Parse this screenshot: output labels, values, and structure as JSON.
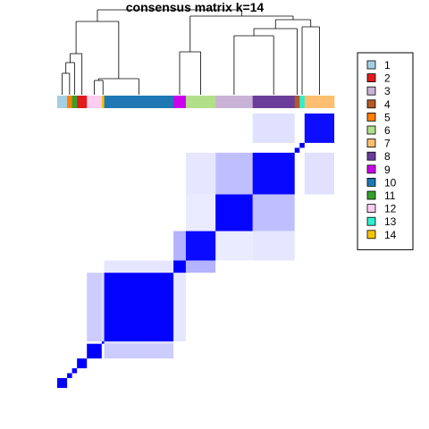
{
  "chart_data": {
    "type": "heatmap",
    "title": "consensus matrix k=14",
    "value_range": [
      0,
      1
    ],
    "color_low": "#ffffff",
    "color_high": "#0000ff",
    "legend_placement": "right",
    "legend": [
      {
        "label": "1",
        "color": "#a6cee3"
      },
      {
        "label": "2",
        "color": "#e31a1c"
      },
      {
        "label": "3",
        "color": "#cab2d6"
      },
      {
        "label": "4",
        "color": "#b15928"
      },
      {
        "label": "5",
        "color": "#ff7f00"
      },
      {
        "label": "6",
        "color": "#b2df8a"
      },
      {
        "label": "7",
        "color": "#fdbf6f"
      },
      {
        "label": "8",
        "color": "#6a3d9a"
      },
      {
        "label": "9",
        "color": "#cc00ee"
      },
      {
        "label": "10",
        "color": "#1f78b4"
      },
      {
        "label": "11",
        "color": "#33a02c"
      },
      {
        "label": "12",
        "color": "#fbcdf0"
      },
      {
        "label": "13",
        "color": "#2ef0d0"
      },
      {
        "label": "14",
        "color": "#f5c400"
      }
    ],
    "column_annotation_order": [
      "1",
      "5",
      "11",
      "2",
      "12",
      "14",
      "10",
      "9",
      "6",
      "3",
      "8",
      "4",
      "13",
      "7"
    ],
    "column_annotation_counts": [
      4,
      2,
      2,
      4,
      6,
      1,
      28,
      5,
      12,
      15,
      17,
      2,
      2,
      12
    ],
    "blocks": [
      {
        "cluster": "7",
        "size": 12,
        "consensus": 0.95
      },
      {
        "cluster": "13",
        "size": 2,
        "consensus": 1.0
      },
      {
        "cluster": "4",
        "size": 2,
        "consensus": 1.0
      },
      {
        "cluster": "8",
        "size": 17,
        "consensus": 0.97
      },
      {
        "cluster": "3",
        "size": 15,
        "consensus": 0.98
      },
      {
        "cluster": "6",
        "size": 12,
        "consensus": 0.96
      },
      {
        "cluster": "9",
        "size": 5,
        "consensus": 1.0
      },
      {
        "cluster": "10",
        "size": 28,
        "consensus": 0.99
      },
      {
        "cluster": "14",
        "size": 1,
        "consensus": 1.0
      },
      {
        "cluster": "12",
        "size": 6,
        "consensus": 1.0
      },
      {
        "cluster": "2",
        "size": 4,
        "consensus": 1.0
      },
      {
        "cluster": "11",
        "size": 2,
        "consensus": 1.0
      },
      {
        "cluster": "5",
        "size": 2,
        "consensus": 1.0
      },
      {
        "cluster": "1",
        "size": 4,
        "consensus": 1.0
      }
    ],
    "off_diagonal": [
      {
        "a": "8",
        "b": "7",
        "value": 0.12
      },
      {
        "a": "8",
        "b": "3",
        "value": 0.25
      },
      {
        "a": "8",
        "b": "6",
        "value": 0.1
      },
      {
        "a": "6",
        "b": "9",
        "value": 0.3
      },
      {
        "a": "10",
        "b": "12",
        "value": 0.2
      },
      {
        "a": "10",
        "b": "9",
        "value": 0.1
      },
      {
        "a": "10",
        "b": "14",
        "value": 0.15
      },
      {
        "a": "3",
        "b": "6",
        "value": 0.08
      }
    ]
  }
}
